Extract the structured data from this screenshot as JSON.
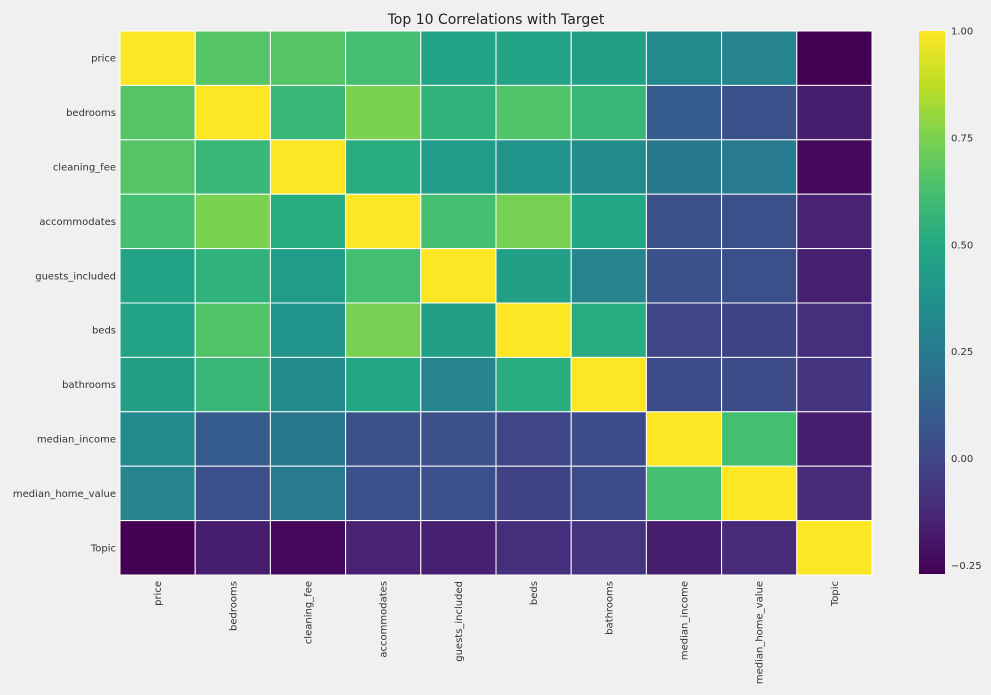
{
  "chart_data": {
    "type": "heatmap",
    "title": "Top 10 Correlations with Target",
    "xlabel": "",
    "ylabel": "",
    "rows": [
      "price",
      "bedrooms",
      "cleaning_fee",
      "accommodates",
      "guests_included",
      "beds",
      "bathrooms",
      "median_income",
      "median_home_value",
      "Topic"
    ],
    "columns": [
      "price",
      "bedrooms",
      "cleaning_fee",
      "accommodates",
      "guests_included",
      "beds",
      "bathrooms",
      "median_income",
      "median_home_value",
      "Topic"
    ],
    "values": [
      [
        1.0,
        0.66,
        0.66,
        0.62,
        0.47,
        0.47,
        0.45,
        0.33,
        0.3,
        -0.27
      ],
      [
        0.66,
        1.0,
        0.58,
        0.75,
        0.55,
        0.65,
        0.58,
        0.1,
        0.04,
        -0.17
      ],
      [
        0.66,
        0.58,
        1.0,
        0.52,
        0.43,
        0.38,
        0.34,
        0.24,
        0.25,
        -0.24
      ],
      [
        0.62,
        0.75,
        0.52,
        1.0,
        0.62,
        0.74,
        0.49,
        0.05,
        0.04,
        -0.15
      ],
      [
        0.47,
        0.55,
        0.43,
        0.62,
        1.0,
        0.45,
        0.3,
        0.05,
        0.04,
        -0.16
      ],
      [
        0.47,
        0.65,
        0.38,
        0.74,
        0.45,
        1.0,
        0.52,
        0.0,
        -0.02,
        -0.1
      ],
      [
        0.45,
        0.58,
        0.34,
        0.49,
        0.3,
        0.52,
        1.0,
        0.02,
        0.02,
        -0.08
      ],
      [
        0.33,
        0.1,
        0.24,
        0.05,
        0.05,
        0.0,
        0.02,
        1.0,
        0.62,
        -0.17
      ],
      [
        0.3,
        0.04,
        0.25,
        0.04,
        0.04,
        -0.02,
        0.02,
        0.62,
        1.0,
        -0.12
      ],
      [
        -0.27,
        -0.17,
        -0.24,
        -0.15,
        -0.16,
        -0.1,
        -0.08,
        -0.17,
        -0.12,
        1.0
      ]
    ],
    "vmin": -0.27,
    "vmax": 1.0,
    "colormap": "viridis",
    "colorbar_ticks": [
      "1.00",
      "0.75",
      "0.50",
      "0.25",
      "0.00",
      "−0.25"
    ],
    "colorbar_tick_values": [
      1.0,
      0.75,
      0.5,
      0.25,
      0.0,
      -0.25
    ],
    "cell_border_color": "#ffffff",
    "background": "#f0f0f0"
  }
}
